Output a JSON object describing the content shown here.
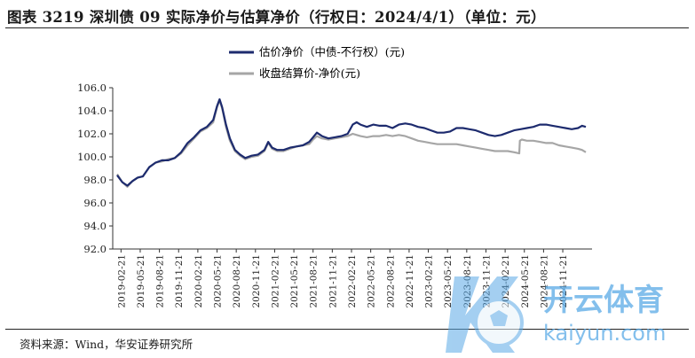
{
  "title": "图表 3219 深圳债 09 实际净价与估算净价（行权日：2024/4/1）（单位：元）",
  "source": "资料来源：Wind，华安证券研究所",
  "watermark": {
    "brand_cn": "开云体育",
    "brand_url": "kaiyun.com"
  },
  "colors": {
    "valuation": "#1d2b6e",
    "closing": "#a6a6a6",
    "axis": "#333333"
  },
  "chart_data": {
    "type": "line",
    "title": "",
    "xlabel": "",
    "ylabel": "",
    "ylim": [
      92.0,
      106.0
    ],
    "yticks": [
      "92.0",
      "94.0",
      "96.0",
      "98.0",
      "100.0",
      "102.0",
      "104.0",
      "106.0"
    ],
    "xticks": [
      "2019-02-21",
      "2019-05-21",
      "2019-08-21",
      "2019-11-21",
      "2020-02-21",
      "2020-05-21",
      "2020-08-21",
      "2020-11-21",
      "2021-02-21",
      "2021-05-21",
      "2021-08-21",
      "2021-11-21",
      "2022-02-21",
      "2022-05-21",
      "2022-08-21",
      "2022-11-21",
      "2023-02-21",
      "2023-05-21",
      "2023-08-21",
      "2023-11-21",
      "2024-02-21",
      "2024-05-21",
      "2024-08-21",
      "2024-11-21"
    ],
    "legend": {
      "position": "top-center"
    },
    "grid": false,
    "series": [
      {
        "name": "估价净价（中债-不行权）(元)",
        "color": "#1d2b6e",
        "points": [
          [
            0,
            98.4
          ],
          [
            0.4,
            97.8
          ],
          [
            0.8,
            97.5
          ],
          [
            1.2,
            97.9
          ],
          [
            1.6,
            98.2
          ],
          [
            2.0,
            98.3
          ],
          [
            2.5,
            99.1
          ],
          [
            3.0,
            99.5
          ],
          [
            3.5,
            99.7
          ],
          [
            4.0,
            99.7
          ],
          [
            4.5,
            99.9
          ],
          [
            5.0,
            100.4
          ],
          [
            5.5,
            101.2
          ],
          [
            6.0,
            101.7
          ],
          [
            6.5,
            102.3
          ],
          [
            7.0,
            102.6
          ],
          [
            7.5,
            103.2
          ],
          [
            7.8,
            104.4
          ],
          [
            8.0,
            105.0
          ],
          [
            8.2,
            104.3
          ],
          [
            8.5,
            102.8
          ],
          [
            8.8,
            101.6
          ],
          [
            9.2,
            100.6
          ],
          [
            9.6,
            100.2
          ],
          [
            10.0,
            99.9
          ],
          [
            10.5,
            100.1
          ],
          [
            11.0,
            100.2
          ],
          [
            11.5,
            100.6
          ],
          [
            11.8,
            101.3
          ],
          [
            12.1,
            100.8
          ],
          [
            12.5,
            100.6
          ],
          [
            13.0,
            100.6
          ],
          [
            13.5,
            100.8
          ],
          [
            14.0,
            100.9
          ],
          [
            14.5,
            101.0
          ],
          [
            15.0,
            101.3
          ],
          [
            15.3,
            101.7
          ],
          [
            15.6,
            102.1
          ],
          [
            16.0,
            101.8
          ],
          [
            16.5,
            101.6
          ],
          [
            17.0,
            101.7
          ],
          [
            17.5,
            101.8
          ],
          [
            18.0,
            102.0
          ],
          [
            18.4,
            102.8
          ],
          [
            18.7,
            103.0
          ],
          [
            19.0,
            102.8
          ],
          [
            19.5,
            102.6
          ],
          [
            20.0,
            102.8
          ],
          [
            20.5,
            102.7
          ],
          [
            21.0,
            102.7
          ],
          [
            21.5,
            102.5
          ],
          [
            22.0,
            102.8
          ],
          [
            22.5,
            102.9
          ],
          [
            23.0,
            102.8
          ],
          [
            23.5,
            102.6
          ],
          [
            24.0,
            102.5
          ],
          [
            24.5,
            102.3
          ],
          [
            25.0,
            102.1
          ],
          [
            25.5,
            102.1
          ],
          [
            26.0,
            102.2
          ],
          [
            26.5,
            102.5
          ],
          [
            27.0,
            102.5
          ],
          [
            27.5,
            102.4
          ],
          [
            28.0,
            102.3
          ],
          [
            28.5,
            102.1
          ],
          [
            29.0,
            101.9
          ],
          [
            29.5,
            101.8
          ],
          [
            30.0,
            101.9
          ],
          [
            30.5,
            102.1
          ],
          [
            31.0,
            102.3
          ],
          [
            31.5,
            102.4
          ],
          [
            32.0,
            102.5
          ],
          [
            32.5,
            102.6
          ],
          [
            33.0,
            102.8
          ],
          [
            33.5,
            102.8
          ],
          [
            34.0,
            102.7
          ],
          [
            34.5,
            102.6
          ],
          [
            35.0,
            102.5
          ],
          [
            35.5,
            102.4
          ],
          [
            36.0,
            102.5
          ],
          [
            36.3,
            102.7
          ],
          [
            36.6,
            102.6
          ]
        ]
      },
      {
        "name": "收盘结算价-净价(元)",
        "color": "#a6a6a6",
        "points": [
          [
            0,
            98.5
          ],
          [
            0.4,
            97.8
          ],
          [
            0.8,
            97.4
          ],
          [
            1.2,
            97.9
          ],
          [
            1.6,
            98.2
          ],
          [
            2.0,
            98.3
          ],
          [
            2.5,
            99.1
          ],
          [
            3.0,
            99.5
          ],
          [
            3.5,
            99.6
          ],
          [
            4.0,
            99.8
          ],
          [
            4.5,
            99.9
          ],
          [
            5.0,
            100.3
          ],
          [
            5.5,
            101.0
          ],
          [
            6.0,
            101.6
          ],
          [
            6.5,
            102.2
          ],
          [
            7.0,
            102.5
          ],
          [
            7.5,
            103.0
          ],
          [
            7.8,
            104.3
          ],
          [
            8.0,
            104.9
          ],
          [
            8.2,
            104.2
          ],
          [
            8.5,
            102.6
          ],
          [
            8.8,
            101.4
          ],
          [
            9.2,
            100.5
          ],
          [
            9.6,
            100.1
          ],
          [
            10.0,
            99.8
          ],
          [
            10.5,
            100.0
          ],
          [
            11.0,
            100.1
          ],
          [
            11.5,
            100.5
          ],
          [
            11.8,
            101.2
          ],
          [
            12.1,
            100.7
          ],
          [
            12.5,
            100.5
          ],
          [
            13.0,
            100.5
          ],
          [
            13.5,
            100.7
          ],
          [
            14.0,
            100.9
          ],
          [
            14.5,
            101.0
          ],
          [
            15.0,
            101.1
          ],
          [
            15.3,
            101.5
          ],
          [
            15.6,
            101.8
          ],
          [
            16.0,
            101.6
          ],
          [
            16.5,
            101.5
          ],
          [
            17.0,
            101.6
          ],
          [
            17.5,
            101.7
          ],
          [
            18.0,
            101.8
          ],
          [
            18.4,
            102.0
          ],
          [
            18.7,
            101.9
          ],
          [
            19.0,
            101.8
          ],
          [
            19.5,
            101.7
          ],
          [
            20.0,
            101.8
          ],
          [
            20.5,
            101.8
          ],
          [
            21.0,
            101.9
          ],
          [
            21.5,
            101.8
          ],
          [
            22.0,
            101.9
          ],
          [
            22.5,
            101.8
          ],
          [
            23.0,
            101.6
          ],
          [
            23.5,
            101.4
          ],
          [
            24.0,
            101.3
          ],
          [
            24.5,
            101.2
          ],
          [
            25.0,
            101.1
          ],
          [
            25.5,
            101.1
          ],
          [
            26.0,
            101.1
          ],
          [
            26.5,
            101.1
          ],
          [
            27.0,
            101.0
          ],
          [
            27.5,
            100.9
          ],
          [
            28.0,
            100.8
          ],
          [
            28.5,
            100.7
          ],
          [
            29.0,
            100.6
          ],
          [
            29.5,
            100.5
          ],
          [
            30.0,
            100.5
          ],
          [
            30.5,
            100.5
          ],
          [
            31.0,
            100.4
          ],
          [
            31.4,
            100.3
          ],
          [
            31.45,
            101.4
          ],
          [
            31.6,
            101.5
          ],
          [
            32.0,
            101.4
          ],
          [
            32.5,
            101.4
          ],
          [
            33.0,
            101.3
          ],
          [
            33.5,
            101.2
          ],
          [
            34.0,
            101.2
          ],
          [
            34.5,
            101.0
          ],
          [
            35.0,
            100.9
          ],
          [
            35.5,
            100.8
          ],
          [
            36.0,
            100.7
          ],
          [
            36.3,
            100.6
          ],
          [
            36.6,
            100.4
          ]
        ]
      }
    ]
  }
}
